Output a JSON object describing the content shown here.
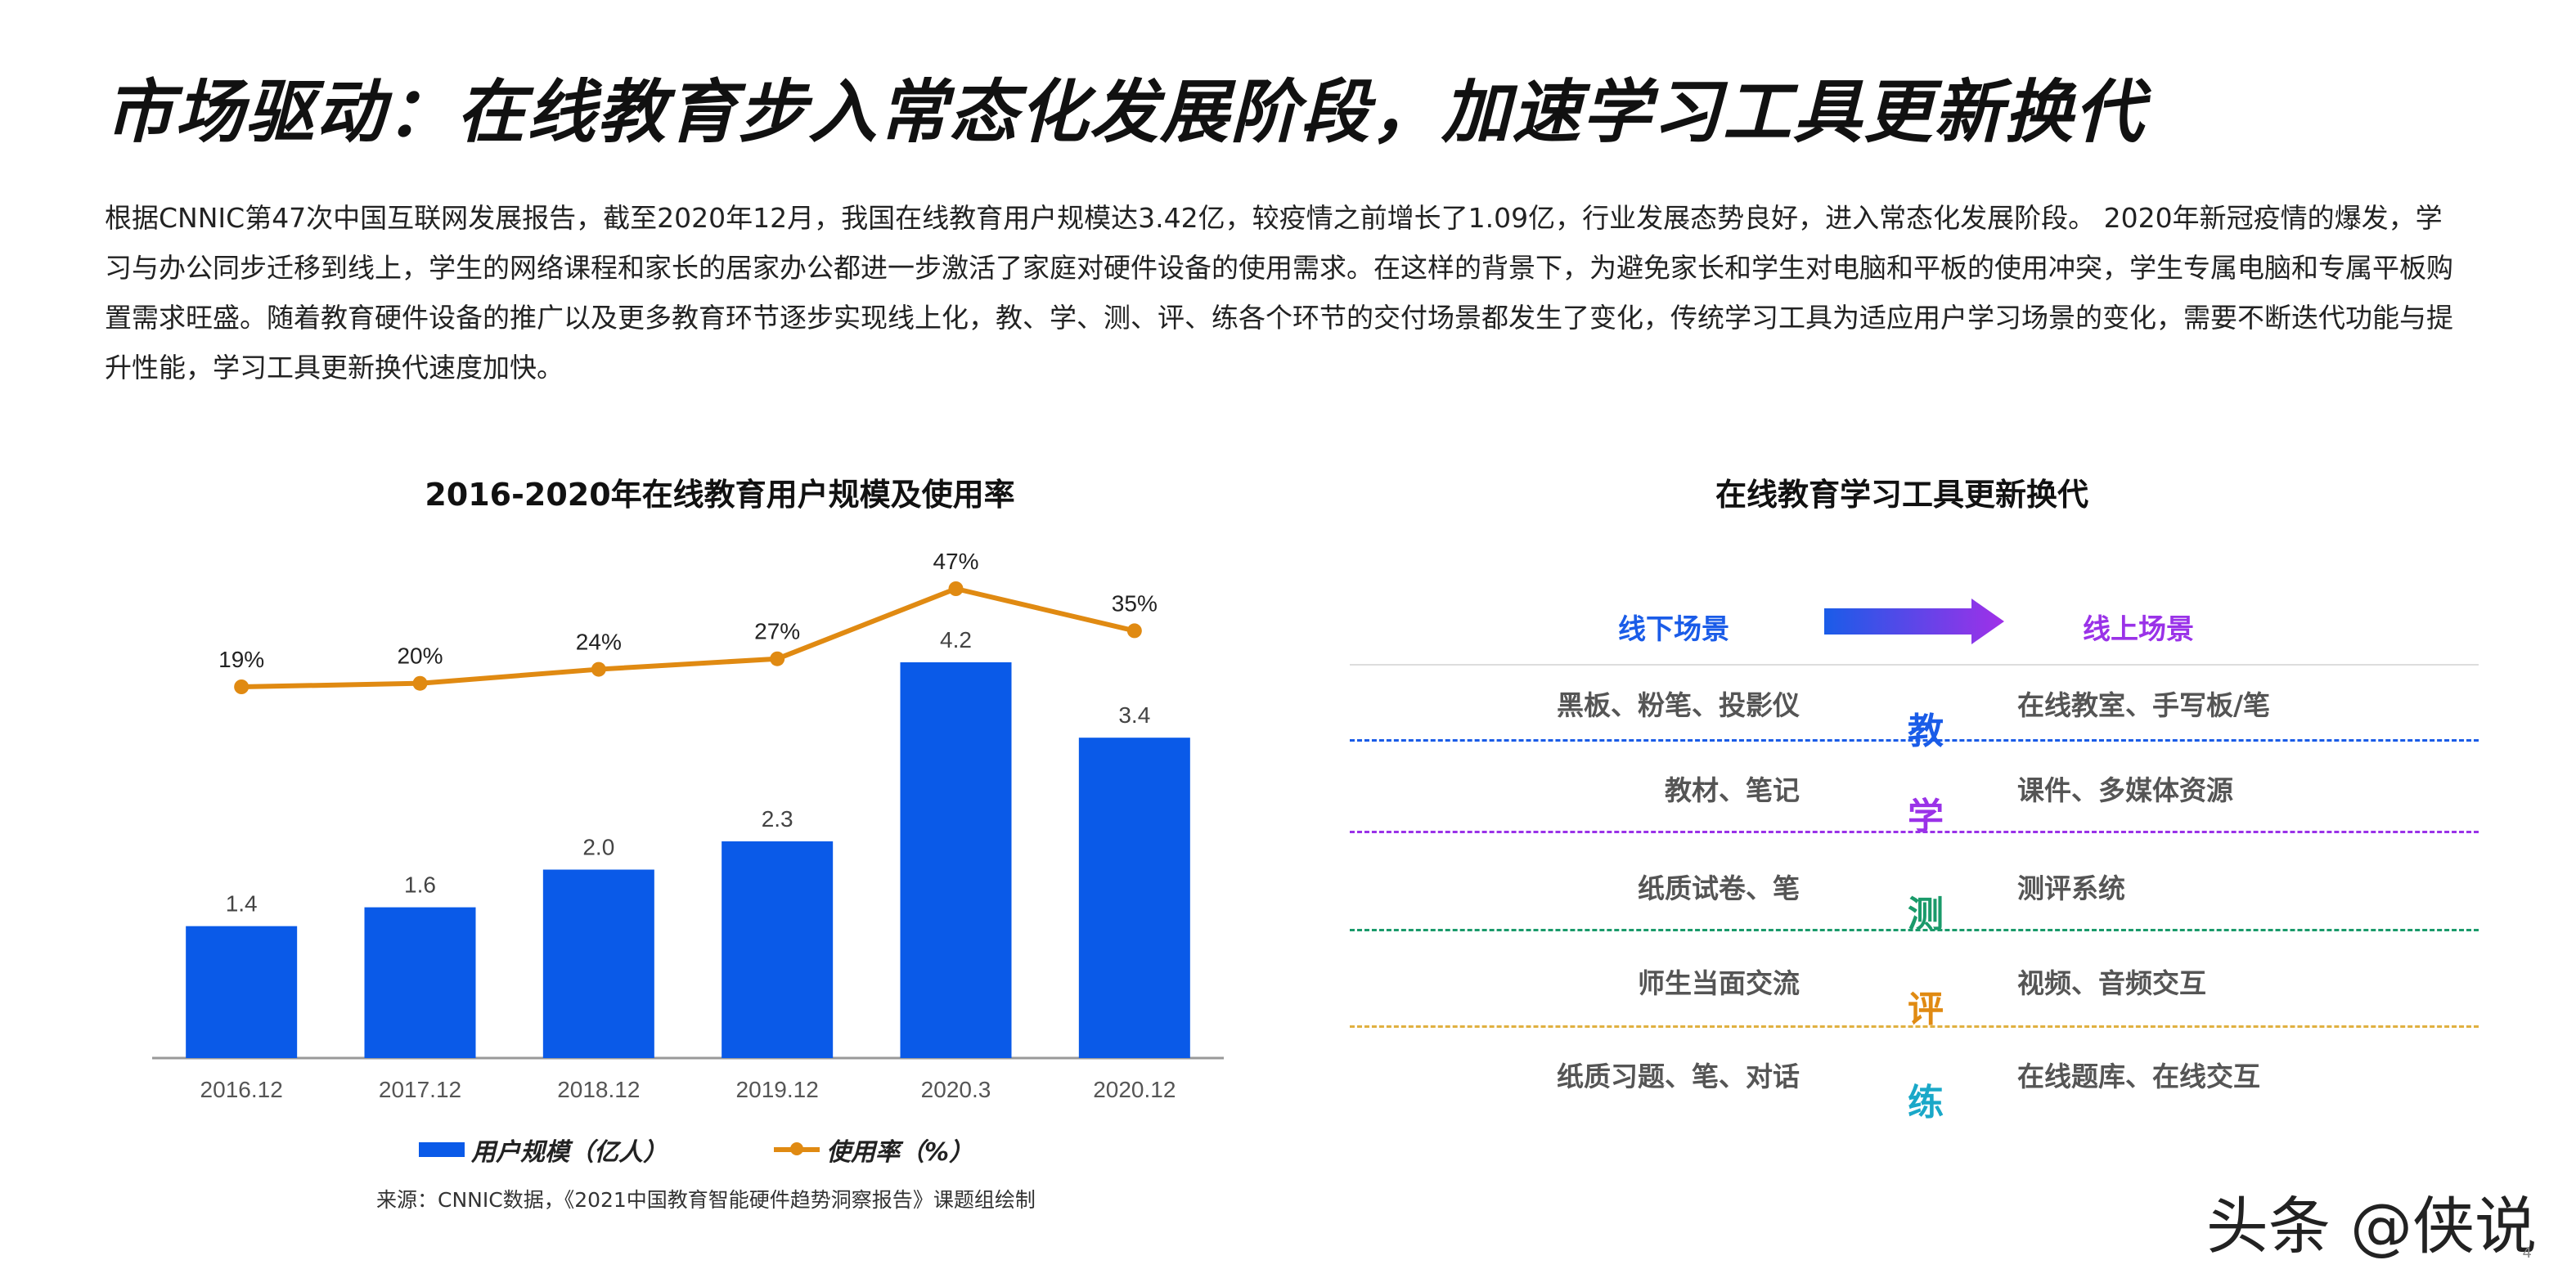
{
  "title": "市场驱动：在线教育步入常态化发展阶段，加速学习工具更新换代",
  "intro": "根据CNNIC第47次中国互联网发展报告，截至2020年12月，我国在线教育用户规模达3.42亿，较疫情之前增长了1.09亿，行业发展态势良好，进入常态化发展阶段。 2020年新冠疫情的爆发，学习与办公同步迁移到线上，学生的网络课程和家长的居家办公都进一步激活了家庭对硬件设备的使用需求。在这样的背景下，为避免家长和学生对电脑和平板的使用冲突，学生专属电脑和专属平板购置需求旺盛。随着教育硬件设备的推广以及更多教育环节逐步实现线上化，教、学、测、评、练各个环节的交付场景都发生了变化，传统学习工具为适应用户学习场景的变化，需要不断迭代功能与提升性能，学习工具更新换代速度加快。",
  "chart_data": {
    "type": "bar",
    "title": "2016-2020年在线教育用户规模及使用率",
    "categories": [
      "2016.12",
      "2017.12",
      "2018.12",
      "2019.12",
      "2020.3",
      "2020.12"
    ],
    "series": [
      {
        "name": "用户规模（亿人）",
        "type": "bar",
        "values": [
          1.4,
          1.6,
          2.0,
          2.3,
          4.2,
          3.4
        ],
        "labels": [
          "1.4",
          "1.6",
          "2.0",
          "2.3",
          "4.2",
          "3.4"
        ],
        "color": "#0a5ae8"
      },
      {
        "name": "使用率（%）",
        "type": "line",
        "values": [
          19,
          20,
          24,
          27,
          47,
          35
        ],
        "labels": [
          "19%",
          "20%",
          "24%",
          "27%",
          "47%",
          "35%"
        ],
        "color": "#e08a12"
      }
    ],
    "ylim": [
      0,
      4.2
    ],
    "ylim_rate": [
      19,
      47
    ]
  },
  "source": "来源：CNNIC数据，《2021中国教育智能硬件趋势洞察报告》课题组绘制",
  "table": {
    "title": "在线教育学习工具更新换代",
    "offline_header": "线下场景",
    "online_header": "线上场景",
    "rows": [
      {
        "offline": "黑板、粉笔、投影仪",
        "verb": "教",
        "online": "在线教室、手写板/笔",
        "color": "#1a5ce8"
      },
      {
        "offline": "教材、笔记",
        "verb": "学",
        "online": "课件、多媒体资源",
        "color": "#9a32e8"
      },
      {
        "offline": "纸质试卷、笔",
        "verb": "测",
        "online": "测评系统",
        "color": "#1a9a6a"
      },
      {
        "offline": "师生当面交流",
        "verb": "评",
        "online": "视频、音频交互",
        "color": "#e08a12"
      },
      {
        "offline": "纸质习题、笔、对话",
        "verb": "练",
        "online": "在线题库、在线交互",
        "color": "#1aa8c8"
      }
    ],
    "divider_colors": [
      "#1a5ce8",
      "#9a32e8",
      "#1a9a6a",
      "#e0b040"
    ]
  },
  "watermark": "头条 @侠说",
  "page_number": "4"
}
